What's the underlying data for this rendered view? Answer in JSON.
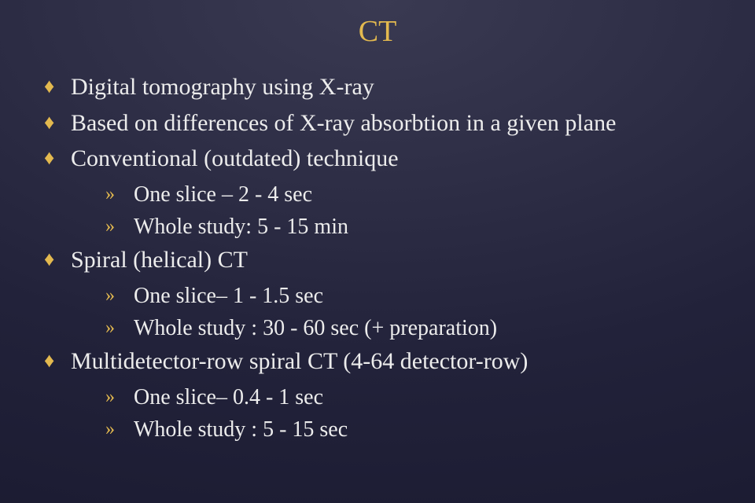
{
  "title": "CT",
  "glyphs": {
    "diamond": "♦",
    "raquo": "»"
  },
  "colors": {
    "accent": "#e3b94f",
    "text": "#ececec",
    "bg_top": "#3a3a52",
    "bg_bottom": "#1a1a30"
  },
  "typography": {
    "family": "Times New Roman",
    "title_fontsize": 38,
    "level1_fontsize": 30,
    "level2_fontsize": 28
  },
  "items": [
    {
      "level": 1,
      "text": "Digital tomography using X-ray"
    },
    {
      "level": 1,
      "text": "Based on differences of X-ray absorbtion in a given plane"
    },
    {
      "level": 1,
      "text": "Conventional (outdated) technique"
    },
    {
      "level": 2,
      "text": "One slice – 2 - 4 sec"
    },
    {
      "level": 2,
      "text": "Whole study:  5 - 15 min"
    },
    {
      "level": 1,
      "text": "Spiral  (helical) CT"
    },
    {
      "level": 2,
      "text": "One slice– 1 - 1.5 sec"
    },
    {
      "level": 2,
      "text": "Whole study :  30 - 60 sec   (+ preparation)"
    },
    {
      "level": 1,
      "text": "Multidetector-row spiral CT  (4-64 detector-row)"
    },
    {
      "level": 2,
      "text": "One slice– 0.4 - 1 sec"
    },
    {
      "level": 2,
      "text": "Whole study :  5 - 15 sec"
    }
  ]
}
